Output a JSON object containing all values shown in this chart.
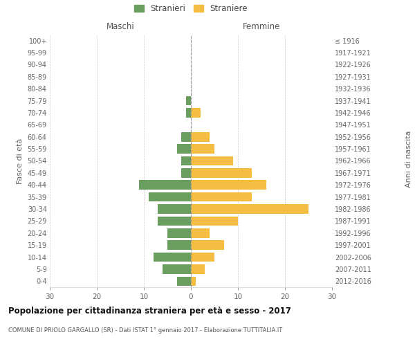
{
  "age_groups": [
    "0-4",
    "5-9",
    "10-14",
    "15-19",
    "20-24",
    "25-29",
    "30-34",
    "35-39",
    "40-44",
    "45-49",
    "50-54",
    "55-59",
    "60-64",
    "65-69",
    "70-74",
    "75-79",
    "80-84",
    "85-89",
    "90-94",
    "95-99",
    "100+"
  ],
  "birth_years": [
    "2012-2016",
    "2007-2011",
    "2002-2006",
    "1997-2001",
    "1992-1996",
    "1987-1991",
    "1982-1986",
    "1977-1981",
    "1972-1976",
    "1967-1971",
    "1962-1966",
    "1957-1961",
    "1952-1956",
    "1947-1951",
    "1942-1946",
    "1937-1941",
    "1932-1936",
    "1927-1931",
    "1922-1926",
    "1917-1921",
    "≤ 1916"
  ],
  "males": [
    3,
    6,
    8,
    5,
    5,
    7,
    7,
    9,
    11,
    2,
    2,
    3,
    2,
    0,
    1,
    1,
    0,
    0,
    0,
    0,
    0
  ],
  "females": [
    1,
    3,
    5,
    7,
    4,
    10,
    25,
    13,
    16,
    13,
    9,
    5,
    4,
    0,
    2,
    0,
    0,
    0,
    0,
    0,
    0
  ],
  "male_color": "#6a9e5f",
  "female_color": "#f5bc42",
  "male_label": "Stranieri",
  "female_label": "Straniere",
  "maschi_label": "Maschi",
  "femmine_label": "Femmine",
  "fasce_label": "Fasce di età",
  "anni_label": "Anni di nascita",
  "xlim": 30,
  "title": "Popolazione per cittadinanza straniera per età e sesso - 2017",
  "subtitle": "COMUNE DI PRIOLO GARGALLO (SR) - Dati ISTAT 1° gennaio 2017 - Elaborazione TUTTITALIA.IT",
  "bg_color": "#ffffff",
  "grid_color": "#cccccc",
  "dashed_line_color": "#999999"
}
